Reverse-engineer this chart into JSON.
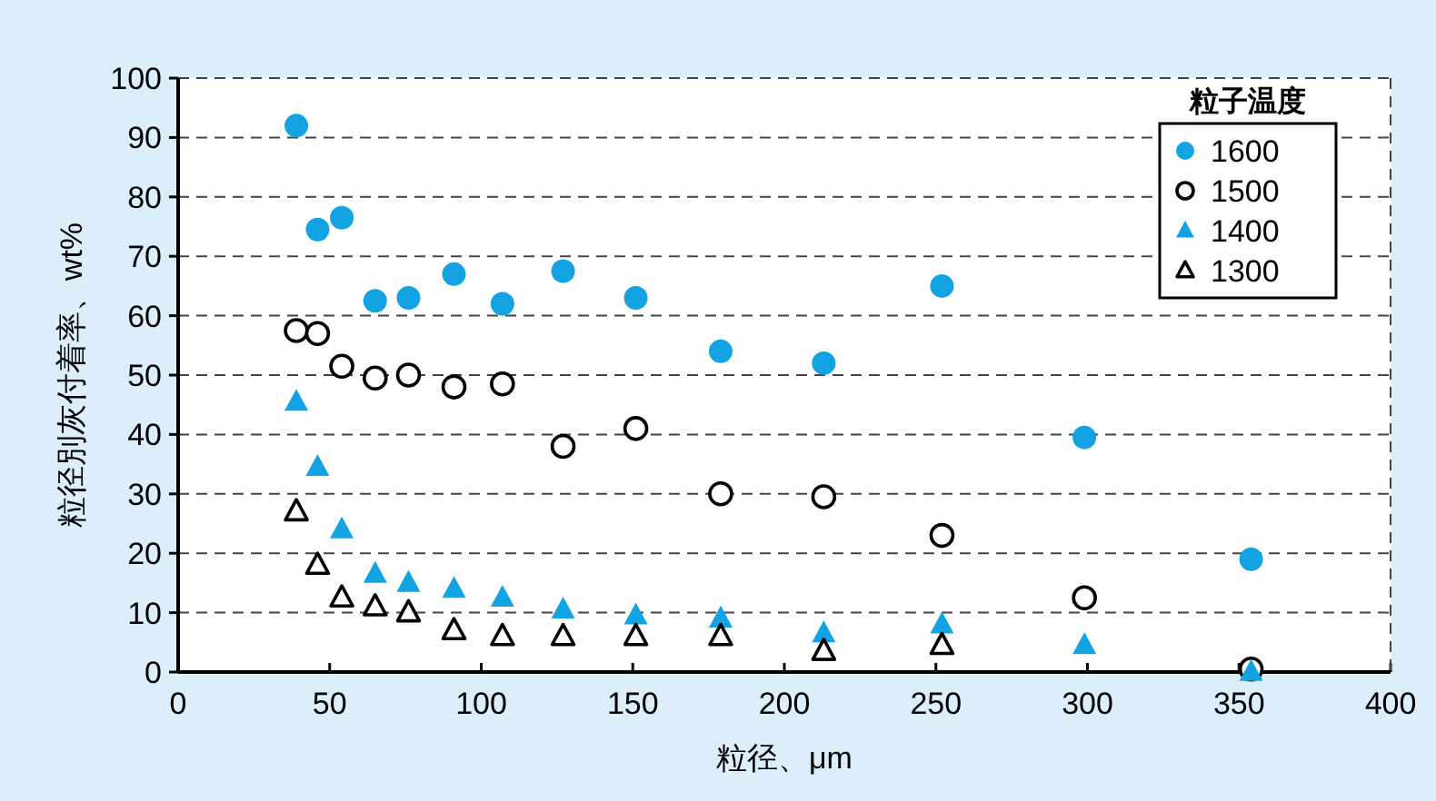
{
  "chart_data": {
    "type": "scatter",
    "xlabel": "粒径、μm",
    "ylabel": "粒径別灰付着率、wt%",
    "legend_title": "粒子温度",
    "legend": "top right",
    "grid": "y",
    "x": [
      39,
      46,
      54,
      65,
      76,
      91,
      107,
      127,
      151,
      179,
      213,
      252,
      299,
      354
    ],
    "xlim": [
      0,
      400
    ],
    "xticks": [
      0,
      50,
      100,
      150,
      200,
      250,
      300,
      350,
      400
    ],
    "ylim": [
      0,
      100
    ],
    "yticks": [
      0,
      10,
      20,
      30,
      40,
      50,
      60,
      70,
      80,
      90,
      100
    ],
    "series": [
      {
        "name": "1600",
        "color": "#13a3e3",
        "marker": "circle",
        "values": [
          92,
          74.5,
          76.5,
          62.5,
          63,
          67,
          62,
          67.5,
          63,
          54,
          52,
          65,
          39.5,
          19
        ]
      },
      {
        "name": "1500",
        "color": "#000000",
        "marker": "circle",
        "values": [
          57.5,
          57,
          51.5,
          49.5,
          50,
          48,
          48.5,
          38,
          41,
          30,
          29.5,
          23,
          12.5,
          0.5
        ]
      },
      {
        "name": "1400",
        "color": "#13a3e3",
        "marker": "triangle",
        "values": [
          45.5,
          34.5,
          24,
          16.5,
          15,
          14,
          12.5,
          10.5,
          9.5,
          9,
          6.5,
          8,
          4.5,
          0
        ]
      },
      {
        "name": "1300",
        "color": "#000000",
        "marker": "triangle",
        "values": [
          27,
          18,
          12.5,
          11,
          10,
          7,
          6,
          6,
          6,
          6,
          3.5,
          4.5,
          null,
          null
        ]
      }
    ]
  }
}
